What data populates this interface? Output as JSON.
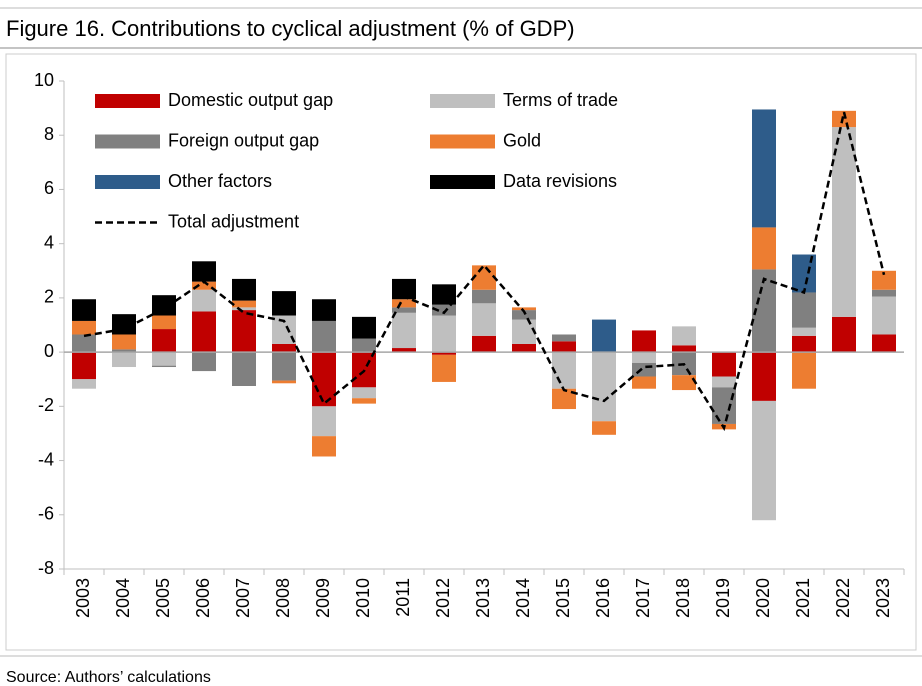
{
  "chart_data": {
    "type": "bar",
    "stacked": true,
    "title": "Figure 16. Contributions to cyclical adjustment (% of GDP)",
    "source": "Source: Authors’ calculations",
    "categories": [
      "2003",
      "2004",
      "2005",
      "2006",
      "2007",
      "2008",
      "2009",
      "2010",
      "2011",
      "2012",
      "2013",
      "2014",
      "2015",
      "2016",
      "2017",
      "2018",
      "2019",
      "2020",
      "2021",
      "2022",
      "2023"
    ],
    "series": [
      {
        "name": "Domestic output gap",
        "color": "#c00000",
        "values": [
          -1.0,
          0,
          0.85,
          1.5,
          1.55,
          0.3,
          -2.0,
          -1.3,
          0.15,
          -0.1,
          0.6,
          0.3,
          0.4,
          0,
          0.8,
          0.25,
          -0.9,
          -1.8,
          0.6,
          1.3,
          0.65
        ]
      },
      {
        "name": "Terms of trade",
        "color": "#bfbfbf",
        "values": [
          -0.35,
          -0.55,
          -0.5,
          0.8,
          0.1,
          1.05,
          -1.1,
          -0.4,
          1.3,
          1.35,
          1.2,
          0.9,
          -1.35,
          -2.55,
          -0.4,
          0.7,
          -0.4,
          -4.4,
          0.3,
          7.0,
          1.4
        ]
      },
      {
        "name": "Foreign output gap",
        "color": "#808080",
        "values": [
          0.65,
          0.1,
          -0.05,
          -0.7,
          -1.25,
          -1.05,
          1.15,
          0.5,
          0.2,
          0.4,
          0.5,
          0.35,
          0.25,
          0,
          -0.5,
          -0.85,
          -1.35,
          3.05,
          1.3,
          0,
          0.25
        ]
      },
      {
        "name": "Gold",
        "color": "#ed7d31",
        "values": [
          0.5,
          0.55,
          0.5,
          0.3,
          0.25,
          -0.1,
          -0.75,
          -0.2,
          0.3,
          -1.0,
          0.9,
          0.1,
          -0.75,
          -0.5,
          -0.45,
          -0.55,
          -0.2,
          1.55,
          -1.35,
          0.6,
          0.7
        ]
      },
      {
        "name": "Other factors",
        "color": "#2e5c8a",
        "values": [
          0,
          0,
          0,
          0,
          0,
          0,
          0,
          0,
          0,
          0,
          0,
          0,
          0,
          1.2,
          0,
          0,
          0,
          4.35,
          1.4,
          0,
          0
        ]
      },
      {
        "name": "Data revisions",
        "color": "#000000",
        "values": [
          0.8,
          0.75,
          0.75,
          0.75,
          0.8,
          0.9,
          0.8,
          0.8,
          0.75,
          0.75,
          0,
          0,
          0,
          0,
          0,
          0,
          0,
          0,
          0,
          0,
          0
        ]
      },
      {
        "name": "Total adjustment",
        "color": "#000000",
        "type": "line",
        "dashed": true,
        "values": [
          0.6,
          0.85,
          1.6,
          2.6,
          1.45,
          1.15,
          -1.9,
          -0.7,
          2.05,
          1.45,
          3.2,
          1.5,
          -1.4,
          -1.8,
          -0.55,
          -0.45,
          -2.8,
          2.7,
          2.2,
          8.85,
          2.85
        ]
      }
    ],
    "ylim": [
      -8,
      10
    ],
    "yticks": [
      -8,
      -6,
      -4,
      -2,
      0,
      2,
      4,
      6,
      8,
      10
    ],
    "grid": false,
    "legend": "top-left"
  }
}
